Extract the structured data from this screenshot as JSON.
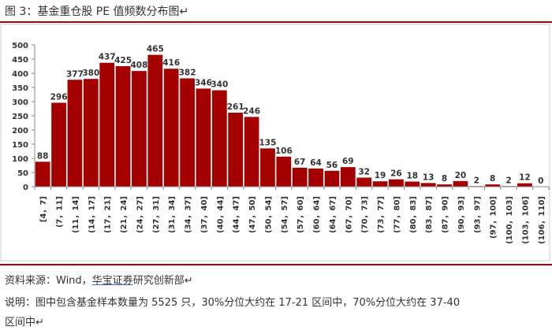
{
  "figure": {
    "title": "图 3：基金重仓股 PE 值频数分布图↵",
    "source_prefix": "资料来源：Wind，",
    "source_link": "华宝证券",
    "source_suffix": "研究创新部↵",
    "note_line1": "说明：图中包含基金样本数量为 5525 只，30%分位大约在 17-21 区间中，70%分位大约在 37-40",
    "note_line2": "区间中↵"
  },
  "colors": {
    "bar": "#a50000",
    "rule": "#b00000",
    "axis": "#888888"
  },
  "chart_data": {
    "type": "bar",
    "categories": [
      "[4，7]",
      "(7，11]",
      "(11，14]",
      "(14，17]",
      "(17，21]",
      "(21，24]",
      "(24，27]",
      "(27，31]",
      "(31，34]",
      "(34，37]",
      "(37，40]",
      "(40，44]",
      "(44，47]",
      "(47，50]",
      "(50，54]",
      "(54，57]",
      "(57，60]",
      "(60，64]",
      "(64，67]",
      "(67，70]",
      "(70，73]",
      "(73，77]",
      "(77，80]",
      "(80，83]",
      "(83，87]",
      "(87，90]",
      "(90，93]",
      "(93，97]",
      "(97，100]",
      "(100，103]",
      "(103，106]",
      "(106，110]"
    ],
    "values": [
      88,
      296,
      377,
      380,
      437,
      425,
      408,
      465,
      416,
      382,
      346,
      340,
      261,
      246,
      135,
      106,
      67,
      64,
      56,
      69,
      32,
      19,
      26,
      18,
      13,
      8,
      20,
      2,
      8,
      2,
      12,
      0
    ],
    "ylim": [
      0,
      500
    ],
    "yticks": [
      0,
      50,
      100,
      150,
      200,
      250,
      300,
      350,
      400,
      450,
      500
    ],
    "grid": false,
    "data_labels": true
  }
}
